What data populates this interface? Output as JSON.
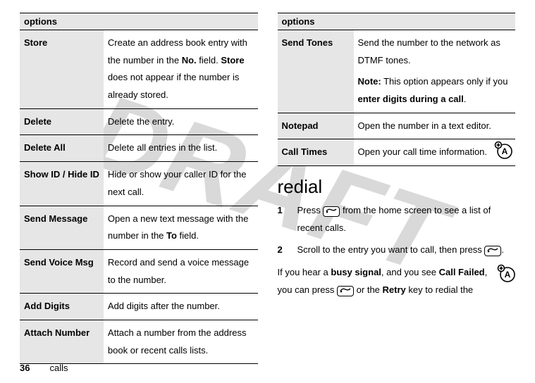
{
  "watermark": "DRAFT",
  "left_table": {
    "header": "options",
    "rows": [
      {
        "k": "Store",
        "v_parts": [
          "Create an address book entry with the number in the ",
          {
            "cb": "No."
          },
          " field. ",
          {
            "cb": "Store"
          },
          " does not appear if the number is already stored."
        ]
      },
      {
        "k": "Delete",
        "v_parts": [
          "Delete the entry."
        ]
      },
      {
        "k": "Delete All",
        "v_parts": [
          "Delete all entries in the list."
        ]
      },
      {
        "k": "Show ID / Hide ID",
        "v_parts": [
          "Hide or show your caller ID for the next call."
        ]
      },
      {
        "k": "Send Message",
        "v_parts": [
          "Open a new text message with the number in the ",
          {
            "cb": "To"
          },
          " field."
        ]
      },
      {
        "k": "Send Voice Msg",
        "v_parts": [
          "Record and send a voice message to the number."
        ]
      },
      {
        "k": "Add Digits",
        "v_parts": [
          "Add digits after the number."
        ]
      },
      {
        "k": "Attach Number",
        "v_parts": [
          "Attach a number from the address book or recent calls lists."
        ]
      }
    ]
  },
  "right_table": {
    "header": "options",
    "rows": [
      {
        "k": "Send Tones",
        "v_parts": [
          "Send the number to the network as DTMF tones.",
          {
            "br": true
          },
          {
            "b": "Note:"
          },
          " This option appears only if you ",
          {
            "b": "enter digits during a call"
          },
          "."
        ]
      },
      {
        "k": "Notepad",
        "v_parts": [
          "Open the number in a text editor."
        ]
      },
      {
        "k": "Call Times",
        "v_parts": [
          "Open your call time information."
        ],
        "icon": true
      }
    ]
  },
  "redial": {
    "heading": "redial",
    "steps": [
      {
        "parts": [
          "Press ",
          {
            "key": "send"
          },
          " from the home screen to see a list of recent calls."
        ]
      },
      {
        "parts": [
          "Scroll to the entry you want to call, then press ",
          {
            "key": "send"
          },
          "."
        ]
      }
    ],
    "tail_parts": [
      "If you hear a ",
      {
        "b": "busy signal"
      },
      ", and you see ",
      {
        "cb": "Call Failed"
      },
      ", you can press ",
      {
        "key": "send"
      },
      " or the ",
      {
        "cb": "Retry"
      },
      " key to redial the"
    ],
    "tail_icon": true
  },
  "footer": {
    "page": "36",
    "section": "calls"
  }
}
